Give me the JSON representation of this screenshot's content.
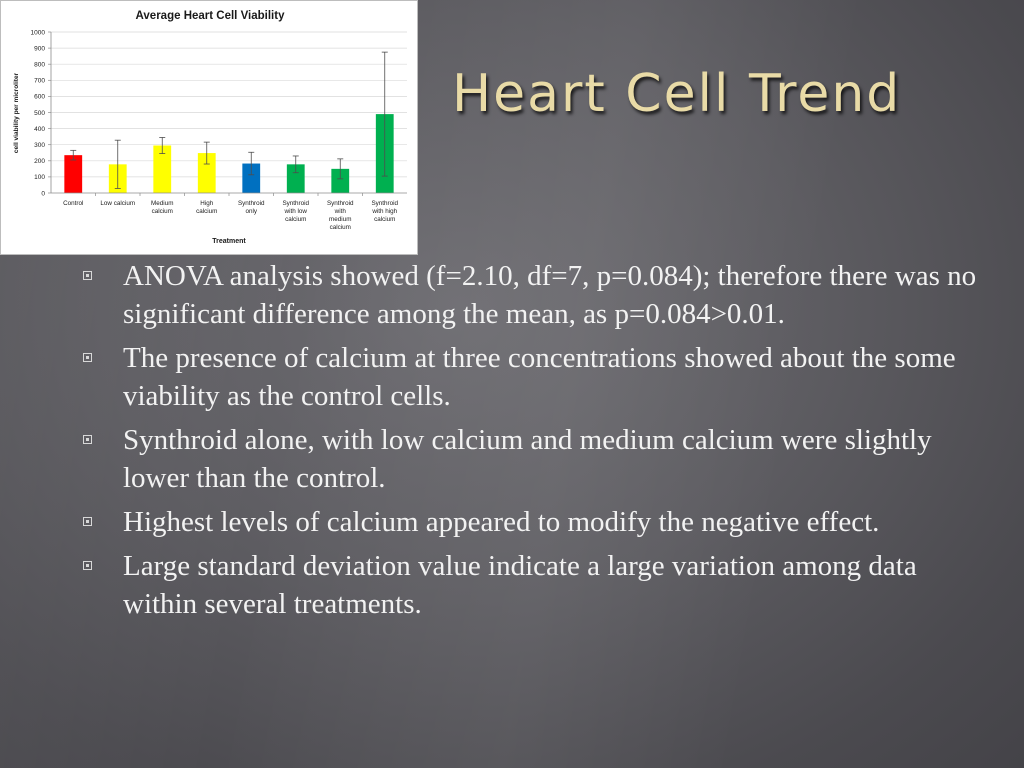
{
  "slide": {
    "title": "Heart Cell Trend",
    "bullets": [
      "ANOVA analysis showed (f=2.10, df=7, p=0.084); therefore there was no significant difference among the mean, as p=0.084>0.01.",
      "The presence of calcium at three concentrations showed about the some viability as the control cells.",
      "Synthroid alone, with low calcium and medium calcium were slightly lower than the control.",
      "Highest levels of calcium appeared to modify the negative effect.",
      "Large standard deviation value indicate a large variation among data within several treatments."
    ],
    "colors": {
      "title": "#e9dba7",
      "body_text": "#f2f2f2",
      "background": "#5d5c61"
    }
  },
  "chart_data": {
    "type": "bar",
    "title": "Average Heart Cell Viability",
    "xlabel": "Treatment",
    "ylabel": "cell viability per microliter",
    "ylim": [
      0,
      1000
    ],
    "yticks": [
      0,
      100,
      200,
      300,
      400,
      500,
      600,
      700,
      800,
      900,
      1000
    ],
    "grid": true,
    "legend": "none",
    "categories": [
      [
        "Control"
      ],
      [
        "Low calcium"
      ],
      [
        "Medium",
        "calcium"
      ],
      [
        "High",
        "calcium"
      ],
      [
        "Synthroid",
        "only"
      ],
      [
        "Synthroid",
        "with low",
        "calcium"
      ],
      [
        "Synthroid",
        "with",
        "medium",
        "calcium"
      ],
      [
        "Synthroid",
        "with high",
        "calcium"
      ]
    ],
    "values": [
      235,
      178,
      295,
      248,
      183,
      178,
      150,
      490
    ],
    "error": [
      30,
      150,
      50,
      68,
      70,
      52,
      62,
      385
    ],
    "colors": [
      "#ff0000",
      "#ffff00",
      "#ffff00",
      "#ffff00",
      "#0070c0",
      "#00b050",
      "#00b050",
      "#00b050"
    ]
  }
}
